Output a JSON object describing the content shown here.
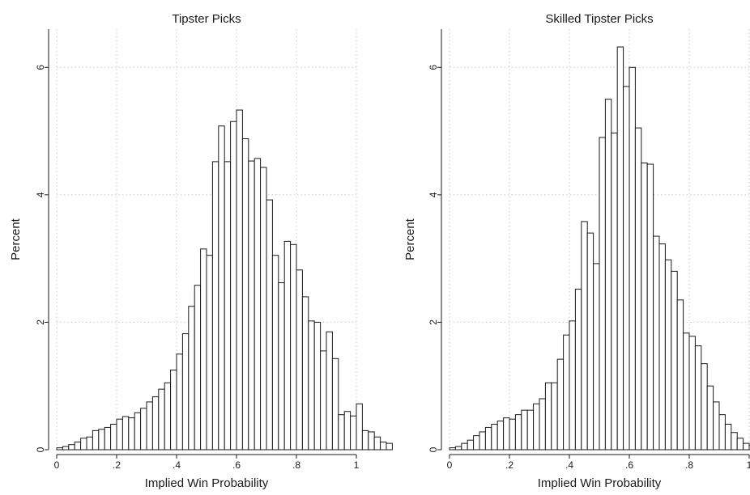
{
  "chart_data": [
    {
      "type": "bar",
      "title": "Tipster Picks",
      "xlabel": "Implied Win Probability",
      "ylabel": "Percent",
      "xlim": [
        0,
        1
      ],
      "ylim": [
        0,
        6.6
      ],
      "xticks": [
        0,
        0.2,
        0.4,
        0.6,
        0.8,
        1
      ],
      "xtick_labels": [
        "0",
        ".2",
        ".4",
        ".6",
        ".8",
        "1"
      ],
      "yticks": [
        0,
        2,
        4,
        6
      ],
      "ytick_labels": [
        "0",
        "2",
        "4",
        "6"
      ],
      "grid": true,
      "bin_width": 0.02,
      "bin_start": 0,
      "values": [
        0.03,
        0.05,
        0.08,
        0.12,
        0.18,
        0.2,
        0.3,
        0.32,
        0.35,
        0.4,
        0.48,
        0.52,
        0.5,
        0.58,
        0.65,
        0.75,
        0.83,
        0.95,
        1.05,
        1.25,
        1.5,
        1.82,
        2.25,
        2.58,
        3.15,
        3.05,
        4.52,
        5.08,
        4.52,
        5.15,
        5.33,
        4.88,
        4.53,
        4.57,
        4.43,
        3.92,
        3.05,
        2.62,
        3.27,
        3.22,
        2.82,
        2.4,
        2.02,
        2.0,
        1.55,
        1.85,
        1.43,
        0.55,
        0.6,
        0.53,
        0.72,
        0.3,
        0.28,
        0.2,
        0.12,
        0.1
      ]
    },
    {
      "type": "bar",
      "title": "Skilled Tipster Picks",
      "xlabel": "Implied Win Probability",
      "ylabel": "Percent",
      "xlim": [
        0,
        1
      ],
      "ylim": [
        0,
        6.6
      ],
      "xticks": [
        0,
        0.2,
        0.4,
        0.6,
        0.8,
        1
      ],
      "xtick_labels": [
        "0",
        ".2",
        ".4",
        ".6",
        ".8",
        "1"
      ],
      "yticks": [
        0,
        2,
        4,
        6
      ],
      "ytick_labels": [
        "0",
        "2",
        "4",
        "6"
      ],
      "grid": true,
      "bin_width": 0.02,
      "bin_start": 0,
      "values": [
        0.03,
        0.05,
        0.1,
        0.15,
        0.22,
        0.28,
        0.35,
        0.4,
        0.45,
        0.5,
        0.48,
        0.55,
        0.62,
        0.62,
        0.72,
        0.8,
        1.05,
        1.05,
        1.42,
        1.8,
        2.02,
        2.52,
        3.58,
        3.4,
        2.92,
        4.9,
        5.5,
        4.97,
        6.32,
        5.7,
        6.0,
        5.05,
        4.5,
        4.48,
        3.35,
        3.23,
        2.98,
        2.8,
        2.35,
        1.83,
        1.78,
        1.63,
        1.35,
        1.0,
        0.75,
        0.55,
        0.4,
        0.27,
        0.18,
        0.1,
        0.07,
        0.05
      ]
    }
  ]
}
